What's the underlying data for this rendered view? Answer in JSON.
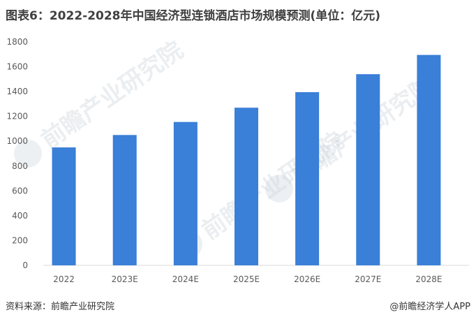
{
  "title": "图表6：2022-2028年中国经济型连锁酒店市场规模预测(单位：亿元)",
  "footer": {
    "source": "资料来源：前瞻产业研究院",
    "credit": "@前瞻经济学人APP"
  },
  "watermark": {
    "text": "前瞻产业研究院"
  },
  "colors": {
    "bar": "#3a7fd8",
    "axis_text": "#595959",
    "grid": "#d9d9d9"
  },
  "chart_data": {
    "type": "bar",
    "categories": [
      "2022",
      "2023E",
      "2024E",
      "2025E",
      "2026E",
      "2027E",
      "2028E"
    ],
    "values": [
      950,
      1050,
      1155,
      1270,
      1395,
      1540,
      1695
    ],
    "title": "图表6：2022-2028年中国经济型连锁酒店市场规模预测(单位：亿元)",
    "xlabel": "",
    "ylabel": "",
    "ylim": [
      0,
      1800
    ],
    "yticks": [
      "0",
      "200",
      "400",
      "600",
      "800",
      "1000",
      "1200",
      "1400",
      "1600",
      "1800"
    ],
    "grid": false,
    "legend": "none"
  }
}
